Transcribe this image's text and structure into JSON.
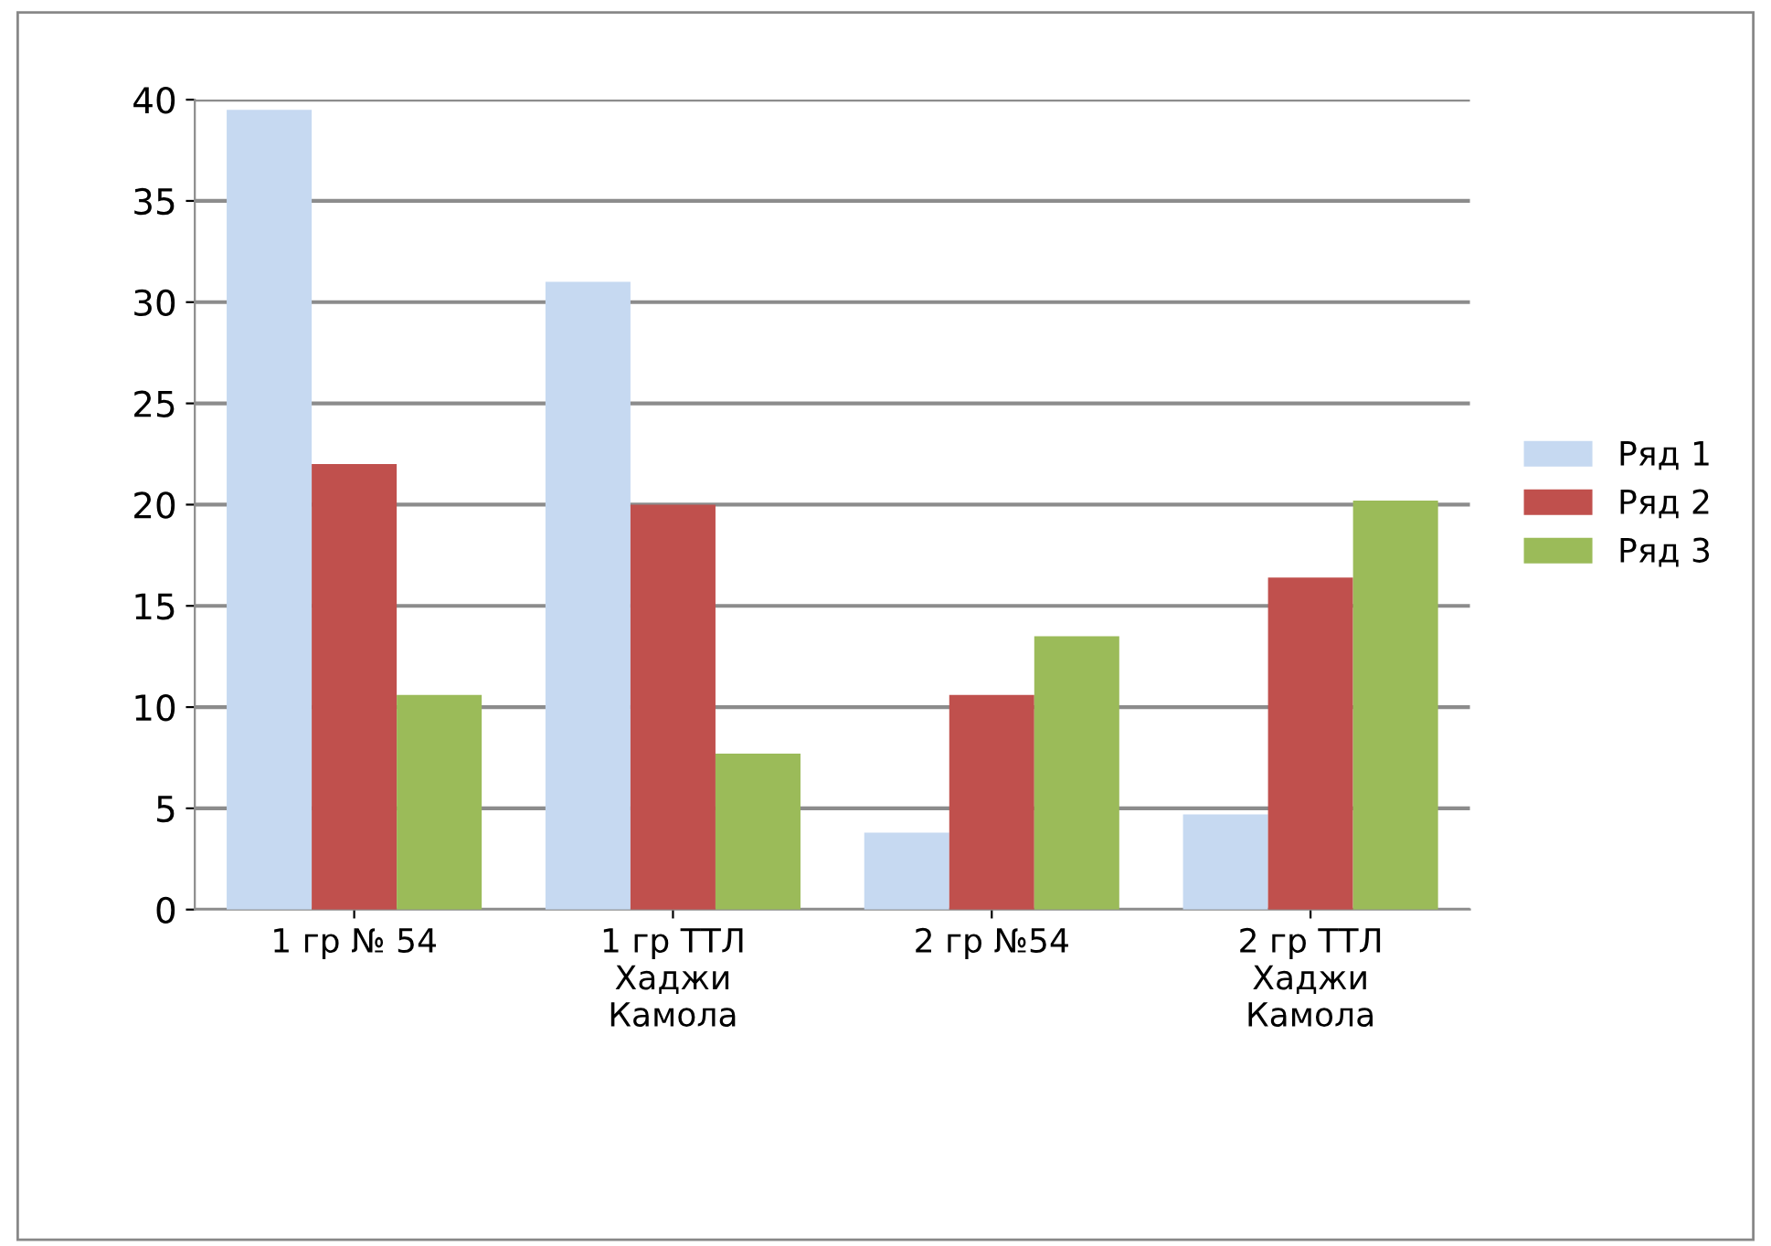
{
  "chart_data": {
    "type": "bar",
    "categories": [
      "1 гр № 54",
      "1 гр ТТЛ\nХаджи\nКамола",
      "2 гр №54",
      "2 гр ТТЛ\nХаджи\nКамола"
    ],
    "series": [
      {
        "name": "Ряд 1",
        "color": "#c6d9f1",
        "values": [
          39.5,
          31,
          3.8,
          4.7
        ]
      },
      {
        "name": "Ряд 2",
        "color": "#c0504d",
        "values": [
          22,
          20,
          10.6,
          16.4
        ]
      },
      {
        "name": "Ряд 3",
        "color": "#9bbb59",
        "values": [
          10.6,
          7.7,
          13.5,
          20.2
        ]
      }
    ],
    "ylim": [
      0,
      40
    ],
    "yticks": [
      0,
      5,
      10,
      15,
      20,
      25,
      30,
      35,
      40
    ],
    "grid": "y",
    "legend": "right"
  }
}
